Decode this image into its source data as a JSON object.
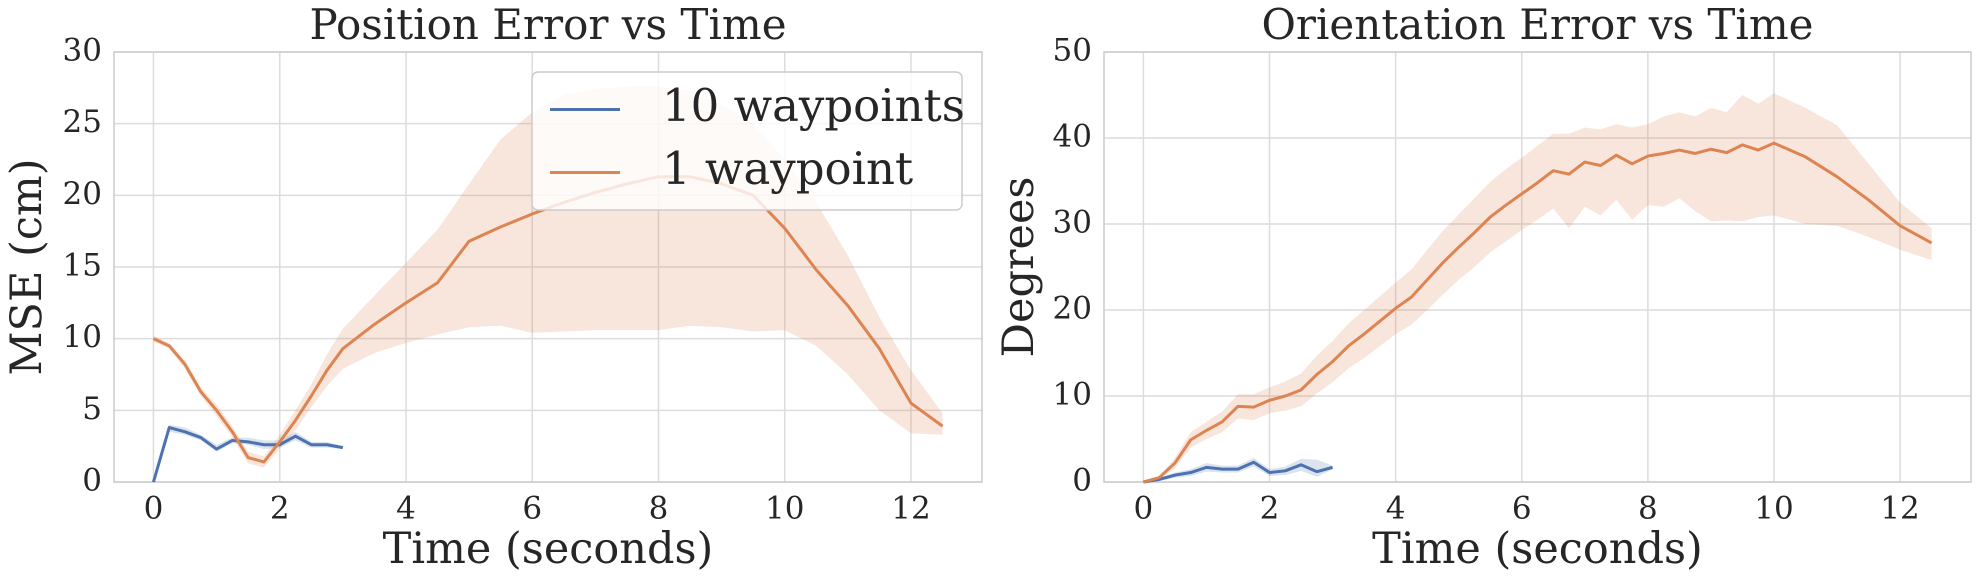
{
  "chart_data": [
    {
      "type": "line",
      "title": "Position Error vs Time",
      "xlabel": "Time (seconds)",
      "ylabel": "MSE (cm)",
      "xlim": [
        -0.625,
        13.125
      ],
      "xticks": [
        0,
        2,
        4,
        6,
        8,
        10,
        12
      ],
      "ylim": [
        0,
        30
      ],
      "yticks": [
        0,
        5,
        10,
        15,
        20,
        25,
        30
      ],
      "grid": true,
      "legend": "upper right",
      "series": [
        {
          "name": "10 waypoints",
          "color": "#4c72b0",
          "x": [
            0,
            0.25,
            0.5,
            0.75,
            1,
            1.25,
            1.5,
            1.75,
            2,
            2.25,
            2.5,
            2.75,
            3
          ],
          "values": [
            0,
            3.8,
            3.5,
            3.1,
            2.3,
            2.9,
            2.8,
            2.6,
            2.6,
            3.2,
            2.6,
            2.6,
            2.4
          ],
          "lower": [
            0,
            3.5,
            3.3,
            2.9,
            2.1,
            2.7,
            2.6,
            2.3,
            2.4,
            2.9,
            2.4,
            2.4,
            2.3
          ],
          "upper": [
            0,
            4,
            3.8,
            3.3,
            2.6,
            3.1,
            3.1,
            2.9,
            2.9,
            3.5,
            2.8,
            2.8,
            2.5
          ]
        },
        {
          "name": "1 waypoint",
          "color": "#dd8452",
          "x": [
            0,
            0.25,
            0.5,
            0.75,
            1,
            1.25,
            1.5,
            1.75,
            2,
            2.25,
            2.5,
            2.75,
            3,
            3.5,
            4,
            4.5,
            5,
            5.5,
            6,
            6.5,
            7,
            7.5,
            8,
            8.5,
            9,
            9.5,
            10,
            10.5,
            11,
            11.5,
            12,
            12.5
          ],
          "values": [
            10,
            9.5,
            8.2,
            6.3,
            5,
            3.5,
            1.7,
            1.4,
            2.8,
            4.3,
            6,
            7.8,
            9.3,
            11,
            12.5,
            13.9,
            16.8,
            17.8,
            18.7,
            19.5,
            20.2,
            20.8,
            21.3,
            21.3,
            20.8,
            20,
            17.7,
            14.8,
            12.3,
            9.3,
            5.5,
            3.9
          ],
          "lower": [
            9.8,
            9.3,
            7.9,
            6,
            4.6,
            3.1,
            1.3,
            1,
            2.3,
            3.6,
            5.2,
            6.7,
            7.9,
            9,
            9.7,
            10.3,
            10.8,
            10.9,
            10.4,
            10.5,
            10.6,
            10.6,
            10.6,
            10.9,
            10.8,
            10.5,
            10.6,
            9.5,
            7.5,
            5,
            3.4,
            3.3
          ],
          "upper": [
            10.2,
            9.7,
            8.5,
            6.6,
            5.4,
            3.9,
            2.1,
            1.8,
            3.3,
            5,
            6.8,
            8.9,
            10.7,
            13,
            15.3,
            17.6,
            20.8,
            23.9,
            25.8,
            27,
            27.4,
            27.6,
            27.6,
            27.3,
            26.3,
            25,
            22.5,
            19.5,
            15.8,
            11.5,
            7.8,
            4.8
          ]
        }
      ]
    },
    {
      "type": "line",
      "title": "Orientation Error vs Time",
      "xlabel": "Time (seconds)",
      "ylabel": "Degrees",
      "xlim": [
        -0.625,
        13.125
      ],
      "xticks": [
        0,
        2,
        4,
        6,
        8,
        10,
        12
      ],
      "ylim": [
        0,
        50
      ],
      "yticks": [
        0,
        10,
        20,
        30,
        40,
        50
      ],
      "grid": true,
      "series": [
        {
          "color": "#4c72b0",
          "x": [
            0,
            0.25,
            0.5,
            0.75,
            1,
            1.25,
            1.5,
            1.75,
            2,
            2.25,
            2.5,
            2.75,
            3
          ],
          "values": [
            0,
            0.3,
            0.8,
            1.1,
            1.7,
            1.5,
            1.5,
            2.3,
            1.1,
            1.3,
            2,
            1.2,
            1.7
          ],
          "lower": [
            0,
            0.1,
            0.5,
            0.7,
            1.2,
            1.1,
            1.1,
            1.8,
            0.7,
            0.8,
            1.3,
            0.6,
            1.5
          ],
          "upper": [
            0,
            0.5,
            1.1,
            1.5,
            2.2,
            1.9,
            1.9,
            2.8,
            1.5,
            1.8,
            2.7,
            2.6,
            1.9
          ]
        },
        {
          "color": "#dd8452",
          "x": [
            0,
            0.25,
            0.5,
            0.75,
            1,
            1.25,
            1.5,
            1.75,
            2,
            2.25,
            2.5,
            2.75,
            3,
            3.25,
            3.5,
            3.75,
            4,
            4.25,
            4.5,
            4.75,
            5,
            5.25,
            5.5,
            5.75,
            6,
            6.25,
            6.5,
            6.75,
            7,
            7.25,
            7.5,
            7.75,
            8,
            8.25,
            8.5,
            8.75,
            9,
            9.25,
            9.5,
            9.75,
            10,
            10.5,
            11,
            11.5,
            12,
            12.5
          ],
          "values": [
            0,
            0.5,
            2.2,
            4.9,
            6,
            7,
            8.8,
            8.7,
            9.5,
            10,
            10.7,
            12.5,
            14,
            15.8,
            17.2,
            18.7,
            20.2,
            21.5,
            23.5,
            25.5,
            27.3,
            29,
            30.8,
            32.2,
            33.5,
            34.8,
            36.2,
            35.8,
            37.2,
            36.8,
            38,
            37,
            37.9,
            38.2,
            38.6,
            38.2,
            38.7,
            38.3,
            39.2,
            38.6,
            39.4,
            37.8,
            35.5,
            32.8,
            29.8,
            27.8
          ],
          "lower": [
            0,
            0.3,
            1.6,
            4,
            5,
            5.8,
            7.4,
            7.2,
            8,
            8.3,
            8.8,
            10.3,
            11.6,
            13.2,
            14.4,
            15.8,
            17.2,
            18.3,
            20,
            21.8,
            23.5,
            25,
            26.7,
            28,
            29.3,
            30.5,
            31.8,
            29.5,
            32,
            31,
            32.8,
            30.5,
            32.2,
            32,
            33,
            31.5,
            30.3,
            30.4,
            30.3,
            30.8,
            31,
            30,
            29.8,
            28.5,
            27,
            25.8
          ],
          "upper": [
            0,
            0.7,
            2.8,
            5.8,
            7,
            8.2,
            10.2,
            10.2,
            11,
            11.7,
            12.6,
            14.7,
            16.4,
            18.4,
            20,
            21.6,
            23.2,
            24.7,
            27,
            29.2,
            31.1,
            33,
            34.9,
            36.4,
            37.7,
            39.1,
            40.5,
            40.5,
            41.2,
            41,
            41.6,
            41.2,
            41.6,
            42.5,
            43,
            42.5,
            43.5,
            43,
            45,
            44,
            45.2,
            43.5,
            41.5,
            37,
            32.5,
            29.5
          ]
        }
      ]
    }
  ]
}
